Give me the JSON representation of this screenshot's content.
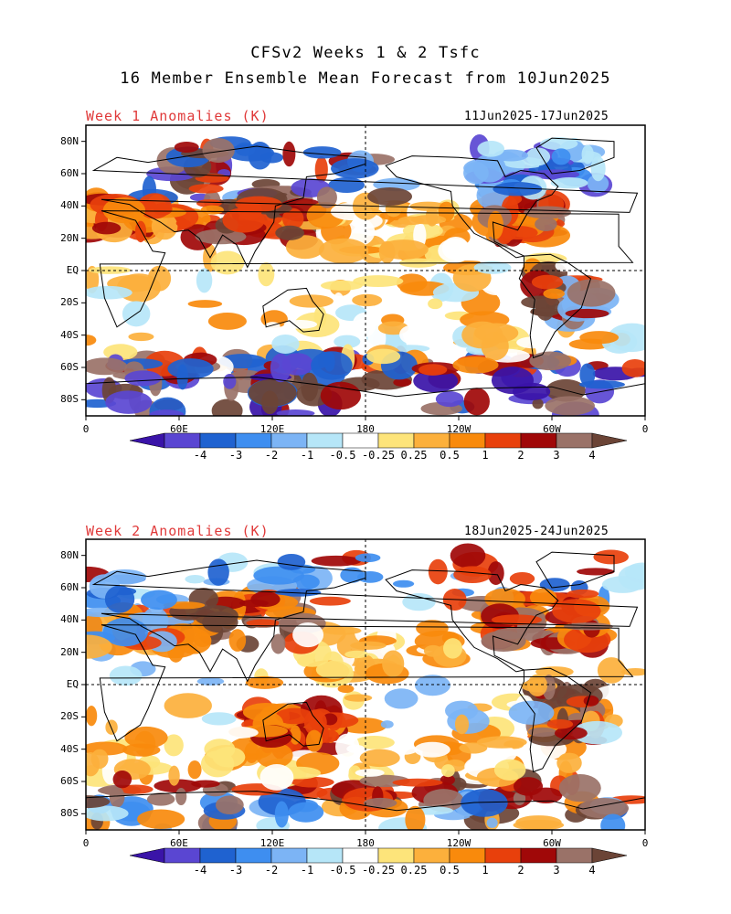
{
  "header": {
    "title_line1": "CFSv2 Weeks 1 & 2 Tsfc",
    "title_line2": "16 Member Ensemble Mean Forecast from 10Jun2025"
  },
  "panels": [
    {
      "label": "Week 1 Anomalies (K)",
      "dates": "11Jun2025-17Jun2025"
    },
    {
      "label": "Week 2 Anomalies (K)",
      "dates": "18Jun2025-24Jun2025"
    }
  ],
  "axes": {
    "lat_labels": [
      "80N",
      "60N",
      "40N",
      "20N",
      "EQ",
      "20S",
      "40S",
      "60S",
      "80S"
    ],
    "lat_values": [
      80,
      60,
      40,
      20,
      0,
      -20,
      -40,
      -60,
      -80
    ],
    "lon_labels": [
      "0",
      "60E",
      "120E",
      "180",
      "120W",
      "60W",
      "0"
    ],
    "lon_values": [
      0,
      60,
      120,
      180,
      240,
      300,
      360
    ],
    "lat_range": [
      -90,
      90
    ],
    "lon_range": [
      0,
      360
    ]
  },
  "colorbar": {
    "labels": [
      "-4",
      "-3",
      "-2",
      "-1",
      "-0.5",
      "-0.25",
      "0.25",
      "0.5",
      "1",
      "2",
      "3",
      "4"
    ],
    "colors": [
      "#3a14a8",
      "#5a46d2",
      "#1f62d0",
      "#3e8ef0",
      "#7cb4f5",
      "#b6e6f8",
      "#ffffff",
      "#fde47a",
      "#fcb03c",
      "#f98a0c",
      "#e8400c",
      "#a00808",
      "#9a7268",
      "#6b4436"
    ]
  },
  "palette": {
    "land_outline": "#000000",
    "title_red": "#e03a3a"
  }
}
